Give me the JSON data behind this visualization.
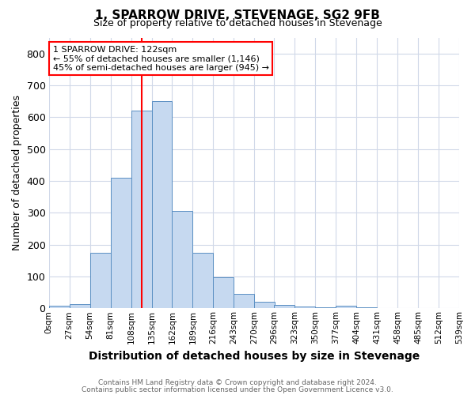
{
  "title": "1, SPARROW DRIVE, STEVENAGE, SG2 9FB",
  "subtitle": "Size of property relative to detached houses in Stevenage",
  "xlabel": "Distribution of detached houses by size in Stevenage",
  "ylabel": "Number of detached properties",
  "footnote1": "Contains HM Land Registry data © Crown copyright and database right 2024.",
  "footnote2": "Contains public sector information licensed under the Open Government Licence v3.0.",
  "bin_labels": [
    "0sqm",
    "27sqm",
    "54sqm",
    "81sqm",
    "108sqm",
    "135sqm",
    "162sqm",
    "189sqm",
    "216sqm",
    "243sqm",
    "270sqm",
    "296sqm",
    "323sqm",
    "350sqm",
    "377sqm",
    "404sqm",
    "431sqm",
    "458sqm",
    "485sqm",
    "512sqm",
    "539sqm"
  ],
  "bar_values": [
    8,
    13,
    175,
    410,
    620,
    650,
    305,
    175,
    98,
    45,
    20,
    10,
    5,
    2,
    7,
    2,
    0,
    0,
    0,
    0
  ],
  "bin_edges": [
    0,
    27,
    54,
    81,
    108,
    135,
    162,
    189,
    216,
    243,
    270,
    296,
    323,
    350,
    377,
    404,
    431,
    458,
    485,
    512,
    539
  ],
  "bar_color": "#c6d9f0",
  "bar_edge_color": "#5a8fc3",
  "red_line_x": 122,
  "annotation_line1": "1 SPARROW DRIVE: 122sqm",
  "annotation_line2": "← 55% of detached houses are smaller (1,146)",
  "annotation_line3": "45% of semi-detached houses are larger (945) →",
  "ylim": [
    0,
    850
  ],
  "yticks": [
    0,
    100,
    200,
    300,
    400,
    500,
    600,
    700,
    800
  ],
  "grid_color": "#d0d8e8",
  "background_color": "#ffffff",
  "fig_bg_color": "#ffffff"
}
